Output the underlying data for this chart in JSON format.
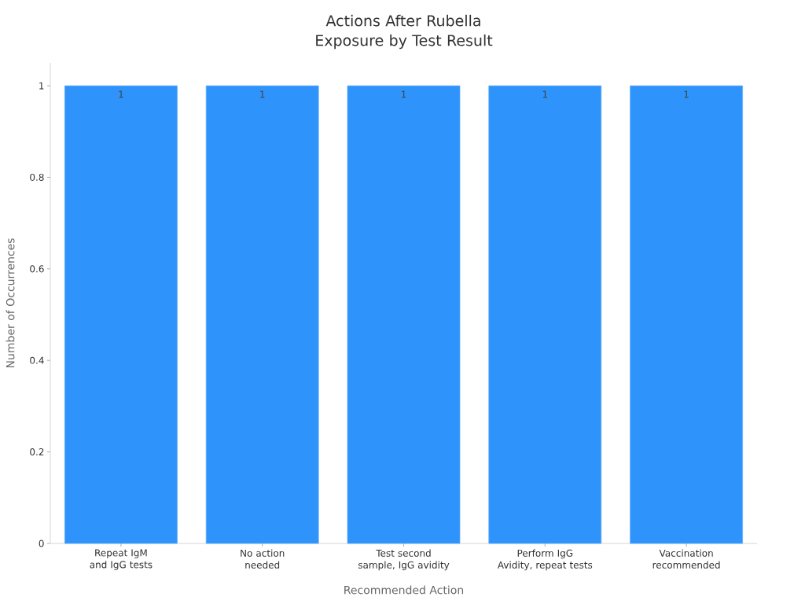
{
  "chart_data": {
    "type": "bar",
    "title": "Actions After Rubella\nExposure by Test Result",
    "xlabel": "Recommended Action",
    "ylabel": "Number of Occurrences",
    "categories": [
      "Repeat IgM\nand IgG tests",
      "No action\nneeded",
      "Test second\nsample, IgG avidity",
      "Perform IgG\nAvidity, repeat tests",
      "Vaccination\nrecommended"
    ],
    "values": [
      1,
      1,
      1,
      1,
      1
    ],
    "color": "#2e93fa",
    "ylim": [
      0,
      1.05
    ],
    "yticks": [
      0,
      0.2,
      0.4,
      0.6,
      0.8,
      1
    ],
    "data_labels": true
  }
}
